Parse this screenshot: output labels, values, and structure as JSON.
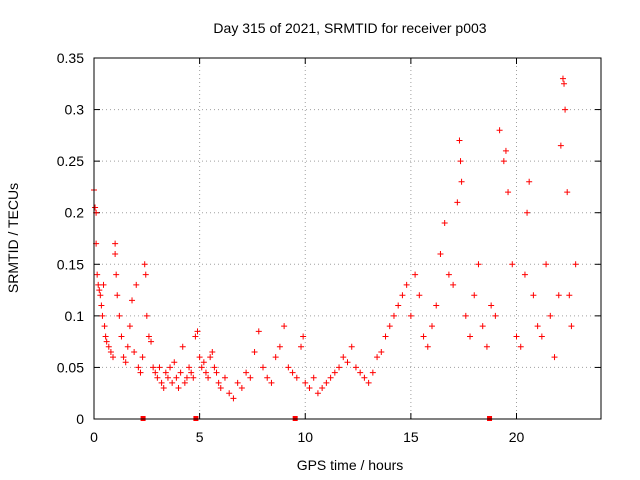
{
  "chart_data": {
    "type": "scatter",
    "title": "Day 315 of 2021, SRMTID for receiver p003",
    "xlabel": "GPS time / hours",
    "ylabel": "SRMTID / TECUs",
    "xlim": [
      0,
      24
    ],
    "ylim": [
      0,
      0.35
    ],
    "x_ticks": [
      {
        "value": 0,
        "label": "0"
      },
      {
        "value": 5,
        "label": "5"
      },
      {
        "value": 10,
        "label": "10"
      },
      {
        "value": 15,
        "label": "15"
      },
      {
        "value": 20,
        "label": "20"
      }
    ],
    "y_ticks": [
      {
        "value": 0,
        "label": "0"
      },
      {
        "value": 0.05,
        "label": "0.05"
      },
      {
        "value": 0.1,
        "label": "0.1"
      },
      {
        "value": 0.15,
        "label": "0.15"
      },
      {
        "value": 0.2,
        "label": "0.2"
      },
      {
        "value": 0.25,
        "label": "0.25"
      },
      {
        "value": 0.3,
        "label": "0.3"
      },
      {
        "value": 0.35,
        "label": "0.35"
      }
    ],
    "grid": true,
    "marker": "plus",
    "color": "#ff0000",
    "gap_markers_x": [
      2.3,
      4.8,
      9.5,
      18.7
    ],
    "series": [
      {
        "name": "SRMTID p003",
        "points": [
          [
            0.0,
            0.222
          ],
          [
            0.05,
            0.205
          ],
          [
            0.1,
            0.2
          ],
          [
            0.1,
            0.17
          ],
          [
            0.15,
            0.14
          ],
          [
            0.2,
            0.13
          ],
          [
            0.25,
            0.125
          ],
          [
            0.3,
            0.12
          ],
          [
            0.35,
            0.11
          ],
          [
            0.4,
            0.1
          ],
          [
            0.45,
            0.13
          ],
          [
            0.5,
            0.09
          ],
          [
            0.55,
            0.08
          ],
          [
            0.6,
            0.075
          ],
          [
            0.7,
            0.07
          ],
          [
            0.8,
            0.065
          ],
          [
            0.9,
            0.06
          ],
          [
            1.0,
            0.17
          ],
          [
            1.0,
            0.16
          ],
          [
            1.05,
            0.14
          ],
          [
            1.1,
            0.12
          ],
          [
            1.2,
            0.1
          ],
          [
            1.3,
            0.08
          ],
          [
            1.4,
            0.06
          ],
          [
            1.5,
            0.055
          ],
          [
            1.6,
            0.07
          ],
          [
            1.7,
            0.09
          ],
          [
            1.8,
            0.115
          ],
          [
            1.9,
            0.065
          ],
          [
            2.0,
            0.13
          ],
          [
            2.1,
            0.05
          ],
          [
            2.2,
            0.045
          ],
          [
            2.3,
            0.06
          ],
          [
            2.4,
            0.15
          ],
          [
            2.45,
            0.14
          ],
          [
            2.5,
            0.1
          ],
          [
            2.6,
            0.08
          ],
          [
            2.7,
            0.075
          ],
          [
            2.8,
            0.05
          ],
          [
            2.9,
            0.045
          ],
          [
            3.0,
            0.04
          ],
          [
            3.1,
            0.05
          ],
          [
            3.2,
            0.035
          ],
          [
            3.3,
            0.03
          ],
          [
            3.4,
            0.045
          ],
          [
            3.5,
            0.04
          ],
          [
            3.6,
            0.05
          ],
          [
            3.7,
            0.035
          ],
          [
            3.8,
            0.055
          ],
          [
            3.9,
            0.04
          ],
          [
            4.0,
            0.03
          ],
          [
            4.1,
            0.045
          ],
          [
            4.2,
            0.07
          ],
          [
            4.3,
            0.035
          ],
          [
            4.4,
            0.04
          ],
          [
            4.5,
            0.05
          ],
          [
            4.6,
            0.045
          ],
          [
            4.7,
            0.04
          ],
          [
            4.8,
            0.08
          ],
          [
            4.9,
            0.085
          ],
          [
            5.0,
            0.06
          ],
          [
            5.1,
            0.05
          ],
          [
            5.2,
            0.055
          ],
          [
            5.3,
            0.045
          ],
          [
            5.4,
            0.04
          ],
          [
            5.5,
            0.06
          ],
          [
            5.6,
            0.065
          ],
          [
            5.7,
            0.05
          ],
          [
            5.8,
            0.045
          ],
          [
            5.9,
            0.035
          ],
          [
            6.0,
            0.03
          ],
          [
            6.2,
            0.04
          ],
          [
            6.4,
            0.025
          ],
          [
            6.6,
            0.02
          ],
          [
            6.8,
            0.035
          ],
          [
            7.0,
            0.03
          ],
          [
            7.2,
            0.045
          ],
          [
            7.4,
            0.04
          ],
          [
            7.6,
            0.065
          ],
          [
            7.8,
            0.085
          ],
          [
            8.0,
            0.05
          ],
          [
            8.2,
            0.04
          ],
          [
            8.4,
            0.035
          ],
          [
            8.6,
            0.06
          ],
          [
            8.8,
            0.07
          ],
          [
            9.0,
            0.09
          ],
          [
            9.2,
            0.05
          ],
          [
            9.4,
            0.045
          ],
          [
            9.6,
            0.04
          ],
          [
            9.8,
            0.07
          ],
          [
            9.9,
            0.08
          ],
          [
            10.0,
            0.035
          ],
          [
            10.2,
            0.03
          ],
          [
            10.4,
            0.04
          ],
          [
            10.6,
            0.025
          ],
          [
            10.8,
            0.03
          ],
          [
            11.0,
            0.035
          ],
          [
            11.2,
            0.04
          ],
          [
            11.4,
            0.045
          ],
          [
            11.6,
            0.05
          ],
          [
            11.8,
            0.06
          ],
          [
            12.0,
            0.055
          ],
          [
            12.2,
            0.07
          ],
          [
            12.4,
            0.05
          ],
          [
            12.6,
            0.045
          ],
          [
            12.8,
            0.04
          ],
          [
            13.0,
            0.035
          ],
          [
            13.2,
            0.045
          ],
          [
            13.4,
            0.06
          ],
          [
            13.6,
            0.065
          ],
          [
            13.8,
            0.08
          ],
          [
            14.0,
            0.09
          ],
          [
            14.2,
            0.1
          ],
          [
            14.4,
            0.11
          ],
          [
            14.6,
            0.12
          ],
          [
            14.8,
            0.13
          ],
          [
            15.0,
            0.1
          ],
          [
            15.2,
            0.14
          ],
          [
            15.4,
            0.12
          ],
          [
            15.6,
            0.08
          ],
          [
            15.8,
            0.07
          ],
          [
            16.0,
            0.09
          ],
          [
            16.2,
            0.11
          ],
          [
            16.4,
            0.16
          ],
          [
            16.6,
            0.19
          ],
          [
            16.8,
            0.14
          ],
          [
            17.0,
            0.13
          ],
          [
            17.2,
            0.21
          ],
          [
            17.3,
            0.27
          ],
          [
            17.35,
            0.25
          ],
          [
            17.4,
            0.23
          ],
          [
            17.6,
            0.1
          ],
          [
            17.8,
            0.08
          ],
          [
            18.0,
            0.12
          ],
          [
            18.2,
            0.15
          ],
          [
            18.4,
            0.09
          ],
          [
            18.6,
            0.07
          ],
          [
            18.8,
            0.11
          ],
          [
            19.0,
            0.1
          ],
          [
            19.2,
            0.28
          ],
          [
            19.4,
            0.25
          ],
          [
            19.5,
            0.26
          ],
          [
            19.6,
            0.22
          ],
          [
            19.8,
            0.15
          ],
          [
            20.0,
            0.08
          ],
          [
            20.2,
            0.07
          ],
          [
            20.4,
            0.14
          ],
          [
            20.5,
            0.2
          ],
          [
            20.6,
            0.23
          ],
          [
            20.8,
            0.12
          ],
          [
            21.0,
            0.09
          ],
          [
            21.2,
            0.08
          ],
          [
            21.4,
            0.15
          ],
          [
            21.6,
            0.1
          ],
          [
            21.8,
            0.06
          ],
          [
            22.0,
            0.12
          ],
          [
            22.1,
            0.265
          ],
          [
            22.2,
            0.33
          ],
          [
            22.25,
            0.325
          ],
          [
            22.3,
            0.3
          ],
          [
            22.4,
            0.22
          ],
          [
            22.5,
            0.12
          ],
          [
            22.6,
            0.09
          ],
          [
            22.8,
            0.15
          ]
        ]
      }
    ]
  }
}
